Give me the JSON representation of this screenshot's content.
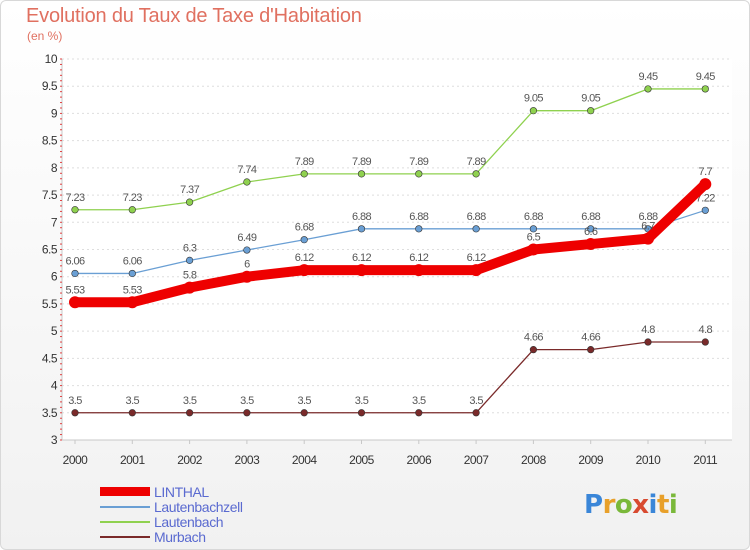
{
  "title": "Evolution du Taux de Taxe d'Habitation",
  "subtitle": "(en %)",
  "logo": {
    "text": "Proxiti",
    "letter_colors": [
      "#3a86d8",
      "#e8a02a",
      "#7ab83a",
      "#d84a30",
      "#3a86d8",
      "#e8a02a",
      "#7ab83a"
    ]
  },
  "chart_data": {
    "type": "line",
    "x": [
      "2000",
      "2001",
      "2002",
      "2003",
      "2004",
      "2005",
      "2006",
      "2007",
      "2008",
      "2009",
      "2010",
      "2011"
    ],
    "ylim": [
      3,
      10
    ],
    "yticks": [
      "3",
      "3.5",
      "4",
      "4.5",
      "5",
      "5.5",
      "6",
      "6.5",
      "7",
      "7.5",
      "8",
      "8.5",
      "9",
      "9.5",
      "10"
    ],
    "grid": "horizontal",
    "legend_position": "bottom-left",
    "series": [
      {
        "name": "Lautenbach",
        "color": "#8fd14f",
        "values": [
          7.23,
          7.23,
          7.37,
          7.74,
          7.89,
          7.89,
          7.89,
          7.89,
          9.05,
          9.05,
          9.45,
          9.45
        ],
        "labels": [
          "7.23",
          "7.23",
          "7.37",
          "7.74",
          "7.89",
          "7.89",
          "7.89",
          "7.89",
          "9.05",
          "9.05",
          "9.45",
          "9.45"
        ]
      },
      {
        "name": "Lautenbachzell",
        "color": "#6a9fd4",
        "values": [
          6.06,
          6.06,
          6.3,
          6.49,
          6.68,
          6.88,
          6.88,
          6.88,
          6.88,
          6.88,
          6.88,
          7.22
        ],
        "labels": [
          "6.06",
          "6.06",
          "6.3",
          "6.49",
          "6.68",
          "6.88",
          "6.88",
          "6.88",
          "6.88",
          "6.88",
          "6.88",
          "7.22"
        ]
      },
      {
        "name": "Murbach",
        "color": "#7a2a2a",
        "values": [
          3.5,
          3.5,
          3.5,
          3.5,
          3.5,
          3.5,
          3.5,
          3.5,
          4.66,
          4.66,
          4.8,
          4.8
        ],
        "labels": [
          "3.5",
          "3.5",
          "3.5",
          "3.5",
          "3.5",
          "3.5",
          "3.5",
          "3.5",
          "4.66",
          "4.66",
          "4.8",
          "4.8"
        ]
      },
      {
        "name": "LINTHAL",
        "color": "#ee0000",
        "values": [
          5.53,
          5.53,
          5.8,
          6.0,
          6.12,
          6.12,
          6.12,
          6.12,
          6.5,
          6.6,
          6.7,
          7.7
        ],
        "labels": [
          "5.53",
          "5.53",
          "5.8",
          "6",
          "6.12",
          "6.12",
          "6.12",
          "6.12",
          "6.5",
          "6.6",
          "6.7",
          "7.7"
        ]
      }
    ],
    "legend": [
      "LINTHAL",
      "Lautenbachzell",
      "Lautenbach",
      "Murbach"
    ]
  }
}
